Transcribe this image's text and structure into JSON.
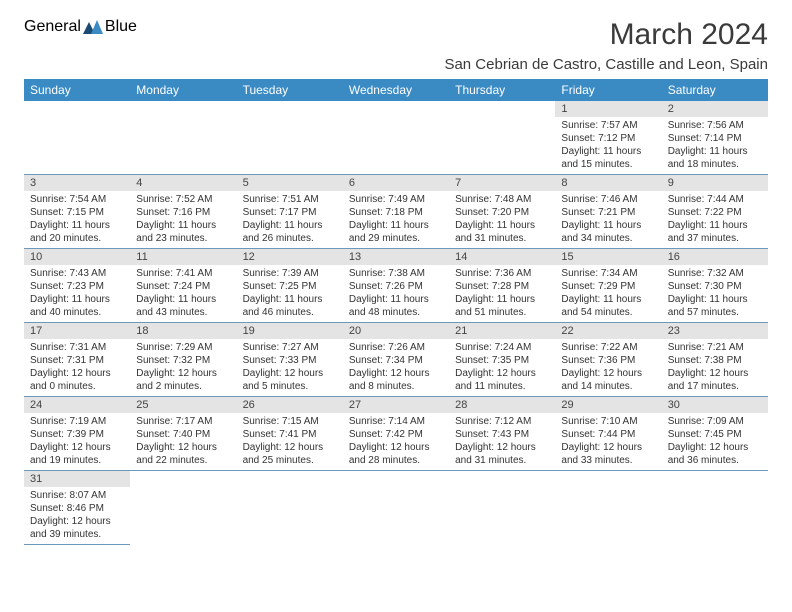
{
  "logo": {
    "text1": "General",
    "text2": "Blue"
  },
  "title": "March 2024",
  "location": "San Cebrian de Castro, Castille and Leon, Spain",
  "colors": {
    "header_bg": "#3a8ac4",
    "header_text": "#ffffff",
    "daynum_bg": "#e4e4e4",
    "border": "#6b98bb",
    "logo_gray": "#5a5a5a",
    "logo_blue": "#3a7fb8"
  },
  "weekdays": [
    "Sunday",
    "Monday",
    "Tuesday",
    "Wednesday",
    "Thursday",
    "Friday",
    "Saturday"
  ],
  "layout": {
    "rows": 6,
    "cols": 7,
    "first_day_col": 5,
    "days_in_month": 31
  },
  "days": {
    "1": {
      "sunrise": "7:57 AM",
      "sunset": "7:12 PM",
      "daylight": "11 hours and 15 minutes."
    },
    "2": {
      "sunrise": "7:56 AM",
      "sunset": "7:14 PM",
      "daylight": "11 hours and 18 minutes."
    },
    "3": {
      "sunrise": "7:54 AM",
      "sunset": "7:15 PM",
      "daylight": "11 hours and 20 minutes."
    },
    "4": {
      "sunrise": "7:52 AM",
      "sunset": "7:16 PM",
      "daylight": "11 hours and 23 minutes."
    },
    "5": {
      "sunrise": "7:51 AM",
      "sunset": "7:17 PM",
      "daylight": "11 hours and 26 minutes."
    },
    "6": {
      "sunrise": "7:49 AM",
      "sunset": "7:18 PM",
      "daylight": "11 hours and 29 minutes."
    },
    "7": {
      "sunrise": "7:48 AM",
      "sunset": "7:20 PM",
      "daylight": "11 hours and 31 minutes."
    },
    "8": {
      "sunrise": "7:46 AM",
      "sunset": "7:21 PM",
      "daylight": "11 hours and 34 minutes."
    },
    "9": {
      "sunrise": "7:44 AM",
      "sunset": "7:22 PM",
      "daylight": "11 hours and 37 minutes."
    },
    "10": {
      "sunrise": "7:43 AM",
      "sunset": "7:23 PM",
      "daylight": "11 hours and 40 minutes."
    },
    "11": {
      "sunrise": "7:41 AM",
      "sunset": "7:24 PM",
      "daylight": "11 hours and 43 minutes."
    },
    "12": {
      "sunrise": "7:39 AM",
      "sunset": "7:25 PM",
      "daylight": "11 hours and 46 minutes."
    },
    "13": {
      "sunrise": "7:38 AM",
      "sunset": "7:26 PM",
      "daylight": "11 hours and 48 minutes."
    },
    "14": {
      "sunrise": "7:36 AM",
      "sunset": "7:28 PM",
      "daylight": "11 hours and 51 minutes."
    },
    "15": {
      "sunrise": "7:34 AM",
      "sunset": "7:29 PM",
      "daylight": "11 hours and 54 minutes."
    },
    "16": {
      "sunrise": "7:32 AM",
      "sunset": "7:30 PM",
      "daylight": "11 hours and 57 minutes."
    },
    "17": {
      "sunrise": "7:31 AM",
      "sunset": "7:31 PM",
      "daylight": "12 hours and 0 minutes."
    },
    "18": {
      "sunrise": "7:29 AM",
      "sunset": "7:32 PM",
      "daylight": "12 hours and 2 minutes."
    },
    "19": {
      "sunrise": "7:27 AM",
      "sunset": "7:33 PM",
      "daylight": "12 hours and 5 minutes."
    },
    "20": {
      "sunrise": "7:26 AM",
      "sunset": "7:34 PM",
      "daylight": "12 hours and 8 minutes."
    },
    "21": {
      "sunrise": "7:24 AM",
      "sunset": "7:35 PM",
      "daylight": "12 hours and 11 minutes."
    },
    "22": {
      "sunrise": "7:22 AM",
      "sunset": "7:36 PM",
      "daylight": "12 hours and 14 minutes."
    },
    "23": {
      "sunrise": "7:21 AM",
      "sunset": "7:38 PM",
      "daylight": "12 hours and 17 minutes."
    },
    "24": {
      "sunrise": "7:19 AM",
      "sunset": "7:39 PM",
      "daylight": "12 hours and 19 minutes."
    },
    "25": {
      "sunrise": "7:17 AM",
      "sunset": "7:40 PM",
      "daylight": "12 hours and 22 minutes."
    },
    "26": {
      "sunrise": "7:15 AM",
      "sunset": "7:41 PM",
      "daylight": "12 hours and 25 minutes."
    },
    "27": {
      "sunrise": "7:14 AM",
      "sunset": "7:42 PM",
      "daylight": "12 hours and 28 minutes."
    },
    "28": {
      "sunrise": "7:12 AM",
      "sunset": "7:43 PM",
      "daylight": "12 hours and 31 minutes."
    },
    "29": {
      "sunrise": "7:10 AM",
      "sunset": "7:44 PM",
      "daylight": "12 hours and 33 minutes."
    },
    "30": {
      "sunrise": "7:09 AM",
      "sunset": "7:45 PM",
      "daylight": "12 hours and 36 minutes."
    },
    "31": {
      "sunrise": "8:07 AM",
      "sunset": "8:46 PM",
      "daylight": "12 hours and 39 minutes."
    }
  },
  "labels": {
    "sunrise": "Sunrise:",
    "sunset": "Sunset:",
    "daylight": "Daylight:"
  }
}
